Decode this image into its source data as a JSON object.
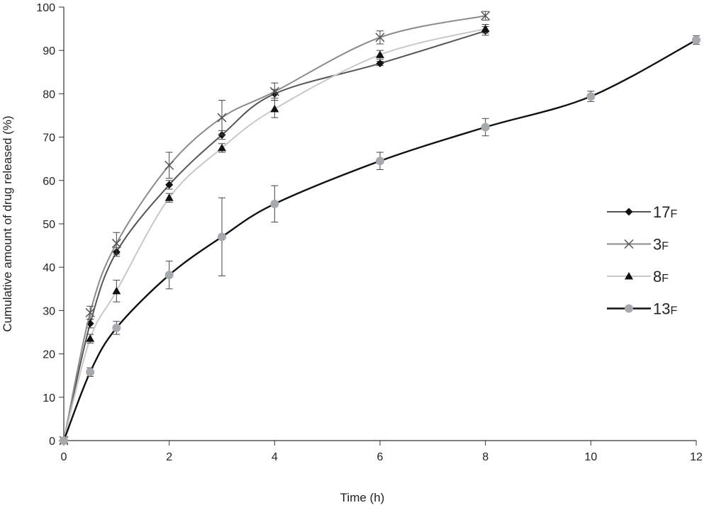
{
  "chart_data": {
    "type": "line",
    "title": "",
    "xlabel": "Time (h)",
    "ylabel": "Cumulative amount of drug released (%)",
    "xlim": [
      0,
      12
    ],
    "ylim": [
      0,
      100
    ],
    "x_ticks": [
      0,
      2,
      4,
      6,
      8,
      10,
      12
    ],
    "y_ticks": [
      0,
      10,
      20,
      30,
      40,
      50,
      60,
      70,
      80,
      90,
      100
    ],
    "grid": false,
    "legend_position": "right",
    "series": [
      {
        "name": "17F",
        "name_main": "17",
        "name_sub": "F",
        "marker": "diamond",
        "color": "#555555",
        "marker_color": "#111111",
        "x": [
          0,
          0.5,
          1,
          2,
          3,
          4,
          6,
          8
        ],
        "y": [
          0,
          27,
          43.5,
          59,
          70.5,
          80,
          87,
          94.5
        ],
        "err": [
          0,
          1,
          1,
          1,
          1,
          1,
          0.5,
          1
        ]
      },
      {
        "name": "3F",
        "name_main": "3",
        "name_sub": "F",
        "marker": "x",
        "color": "#8a8a8a",
        "marker_color": "#555555",
        "x": [
          0,
          0.5,
          1,
          2,
          3,
          4,
          6,
          8
        ],
        "y": [
          0,
          29.5,
          45.5,
          63.5,
          74.5,
          80.5,
          93,
          98
        ],
        "err": [
          0,
          1.5,
          2.5,
          3,
          4,
          2,
          1.5,
          1
        ]
      },
      {
        "name": "8F",
        "name_main": "8",
        "name_sub": "F",
        "marker": "triangle",
        "color": "#c8c8c8",
        "marker_color": "#111111",
        "x": [
          0,
          0.5,
          1,
          2,
          3,
          4,
          6,
          8
        ],
        "y": [
          0,
          23.5,
          34.5,
          56,
          67.5,
          76.5,
          89,
          95
        ],
        "err": [
          0,
          1,
          2.5,
          1,
          1,
          2,
          1,
          1
        ]
      },
      {
        "name": "13F",
        "name_main": "13",
        "name_sub": "F",
        "marker": "circle",
        "color": "#111111",
        "marker_color": "#a6a9ad",
        "x": [
          0,
          0.5,
          1,
          2,
          3,
          4,
          6,
          8,
          10,
          12
        ],
        "y": [
          0,
          15.8,
          26,
          38.2,
          47,
          54.6,
          64.5,
          72.3,
          79.4,
          92.4
        ],
        "err": [
          0,
          1,
          1.5,
          3.2,
          9,
          4.2,
          2,
          2,
          1.2,
          1
        ]
      }
    ]
  }
}
